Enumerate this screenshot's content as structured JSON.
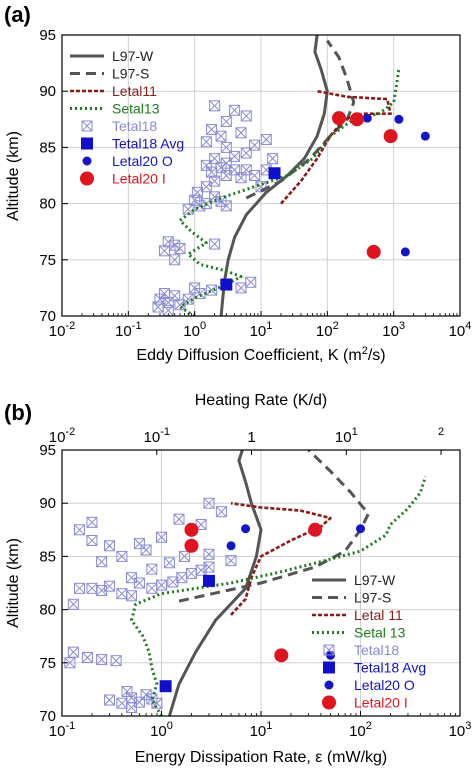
{
  "colors": {
    "l97w": "#555555",
    "l97s": "#555555",
    "letal11": "#8b1a1a",
    "setal13": "#1e7a1e",
    "tetal18": "#8a8ad8",
    "tetal18avg": "#1010cc",
    "letal20o": "#1515c8",
    "letal20i": "#e0141e"
  },
  "chart_data": [
    {
      "type": "scatter",
      "panel_label": "(a)",
      "xlabel": "Eddy Diffusion Coefficient, K (m",
      "xlabel_sup": "2",
      "xlabel_tail": "/s)",
      "ylabel": "Altitude (km)",
      "x_scale": "log",
      "xlim": [
        0.01,
        10000
      ],
      "ylim": [
        70,
        95
      ],
      "grid": true,
      "legend_position": "top-left",
      "x_tick_bases": [
        "10",
        "10",
        "10",
        "10",
        "10",
        "10",
        "10"
      ],
      "x_tick_exps": [
        "-2",
        "-1",
        "0",
        "1",
        "2",
        "3",
        "4"
      ],
      "y_ticks": [
        "70",
        "75",
        "80",
        "85",
        "90",
        "95"
      ],
      "legend": [
        "L97-W",
        "L97-S",
        "Letal11",
        "Setal13",
        "Tetal18",
        "Tetal18 Avg",
        "Letal20 O",
        "Letal20 I"
      ],
      "series": [
        {
          "name": "L97-W",
          "style": "line",
          "points": [
            [
              2.5,
              70
            ],
            [
              2.8,
              73
            ],
            [
              3.2,
              75
            ],
            [
              4,
              77
            ],
            [
              6,
              79
            ],
            [
              12,
              81
            ],
            [
              25,
              82.5
            ],
            [
              45,
              84
            ],
            [
              70,
              86
            ],
            [
              90,
              88
            ],
            [
              100,
              90
            ],
            [
              80,
              92
            ],
            [
              65,
              93.5
            ],
            [
              70,
              95
            ]
          ]
        },
        {
          "name": "L97-S",
          "style": "dash",
          "points": [
            [
              6,
              80.5
            ],
            [
              20,
              82
            ],
            [
              55,
              84
            ],
            [
              110,
              86
            ],
            [
              200,
              87.5
            ],
            [
              250,
              89
            ],
            [
              200,
              91
            ],
            [
              150,
              93
            ],
            [
              100,
              94.5
            ]
          ]
        },
        {
          "name": "Letal11",
          "style": "dot-dash",
          "points": [
            [
              20,
              80
            ],
            [
              40,
              82
            ],
            [
              70,
              84
            ],
            [
              110,
              86
            ],
            [
              180,
              87.5
            ],
            [
              350,
              88
            ],
            [
              900,
              88
            ],
            [
              800,
              89.3
            ],
            [
              200,
              89.5
            ],
            [
              70,
              90
            ]
          ]
        },
        {
          "name": "Setal13",
          "style": "dot",
          "points": [
            [
              1,
              70
            ],
            [
              0.6,
              70.8
            ],
            [
              1,
              71.6
            ],
            [
              3,
              72.8
            ],
            [
              5,
              73.5
            ],
            [
              3,
              74
            ],
            [
              1.2,
              74.6
            ],
            [
              0.8,
              75.5
            ],
            [
              1.5,
              76.5
            ],
            [
              0.9,
              77.5
            ],
            [
              0.6,
              78.5
            ],
            [
              1,
              79.5
            ],
            [
              2.5,
              80.5
            ],
            [
              8,
              81.5
            ],
            [
              25,
              82.5
            ],
            [
              60,
              84
            ],
            [
              110,
              86
            ],
            [
              250,
              87.5
            ],
            [
              600,
              88
            ],
            [
              1000,
              89
            ],
            [
              1100,
              90.5
            ],
            [
              1200,
              92
            ]
          ]
        },
        {
          "name": "Tetal18",
          "style": "xbox",
          "points": [
            [
              0.3,
              71.5
            ],
            [
              0.4,
              71.2
            ],
            [
              0.35,
              72
            ],
            [
              0.5,
              71.8
            ],
            [
              0.28,
              70.8
            ],
            [
              0.4,
              70.5
            ],
            [
              0.6,
              71
            ],
            [
              0.8,
              71.5
            ],
            [
              1,
              72.5
            ],
            [
              1.2,
              72
            ],
            [
              1.8,
              72.3
            ],
            [
              5,
              72.5
            ],
            [
              7,
              73
            ],
            [
              0.5,
              75
            ],
            [
              0.35,
              75.8
            ],
            [
              0.5,
              76.3
            ],
            [
              0.4,
              76.6
            ],
            [
              0.6,
              76
            ],
            [
              2,
              76.4
            ],
            [
              0.8,
              79.5
            ],
            [
              1.2,
              79.8
            ],
            [
              1,
              80.3
            ],
            [
              1.5,
              80
            ],
            [
              2,
              80.6
            ],
            [
              3,
              79.8
            ],
            [
              2.5,
              80.2
            ],
            [
              1.1,
              81
            ],
            [
              1.5,
              81.5
            ],
            [
              2,
              82
            ],
            [
              3,
              82.5
            ],
            [
              4,
              83
            ],
            [
              5,
              82.3
            ],
            [
              1.8,
              82.8
            ],
            [
              2.5,
              83.2
            ],
            [
              3,
              83.6
            ],
            [
              1.5,
              83.4
            ],
            [
              6,
              83
            ],
            [
              8,
              82.5
            ],
            [
              10,
              81.5
            ],
            [
              12,
              83
            ],
            [
              15,
              84
            ],
            [
              2,
              84
            ],
            [
              4,
              84.2
            ],
            [
              6,
              84.5
            ],
            [
              3,
              85
            ],
            [
              8,
              85.2
            ],
            [
              1.5,
              85.5
            ],
            [
              2.5,
              86
            ],
            [
              5,
              86.3
            ],
            [
              1.8,
              86.6
            ],
            [
              12,
              85.7
            ],
            [
              3,
              87.3
            ],
            [
              6,
              87.8
            ],
            [
              4,
              88.3
            ],
            [
              2,
              88.7
            ]
          ]
        },
        {
          "name": "Tetal18 Avg",
          "style": "square",
          "points": [
            [
              3,
              72.8
            ],
            [
              16,
              82.7
            ]
          ]
        },
        {
          "name": "Letal20 O",
          "style": "small-dot",
          "points": [
            [
              1200,
              87.5
            ],
            [
              400,
              87.6
            ],
            [
              3000,
              86
            ],
            [
              1500,
              75.7
            ]
          ]
        },
        {
          "name": "Letal20 I",
          "style": "big-dot",
          "points": [
            [
              150,
              87.6
            ],
            [
              280,
              87.5
            ],
            [
              900,
              86
            ],
            [
              500,
              75.7
            ]
          ]
        }
      ]
    },
    {
      "type": "scatter",
      "panel_label": "(b)",
      "xlabel": "Energy Dissipation Rate,  ε (mW/kg)",
      "x2label": "Heating Rate (K/d)",
      "ylabel": "Altitude (km)",
      "x_scale": "log",
      "xlim": [
        0.1,
        1000
      ],
      "x2lim": [
        0.01,
        1000
      ],
      "ylim": [
        70,
        95
      ],
      "grid": true,
      "legend_position": "bottom-right",
      "x_tick_bases": [
        "10",
        "10",
        "10",
        "10",
        "10"
      ],
      "x_tick_exps": [
        "-1",
        "0",
        "1",
        "2",
        "3"
      ],
      "x2_tick_bases": [
        "10",
        "10",
        "10",
        "10"
      ],
      "x2_tick_exps": [
        "-2",
        "-1",
        "0",
        "1",
        "2"
      ],
      "x2_tick_labels_special": [
        "",
        "",
        "1",
        "",
        ""
      ],
      "y_ticks": [
        "70",
        "75",
        "80",
        "85",
        "90",
        "95"
      ],
      "legend": [
        "L97-W",
        "L97-S",
        "Letal 11",
        "Setal 13",
        "Tetal18",
        "Tetal18 Avg",
        "Letal20 O",
        "Letal20 I"
      ],
      "series": [
        {
          "name": "L97-W",
          "style": "line",
          "points": [
            [
              1.2,
              70
            ],
            [
              1.5,
              73
            ],
            [
              2.2,
              76
            ],
            [
              3.5,
              79
            ],
            [
              7,
              82
            ],
            [
              9,
              85
            ],
            [
              10,
              87.5
            ],
            [
              8,
              90
            ],
            [
              7,
              92
            ],
            [
              6,
              94
            ],
            [
              6.5,
              95
            ]
          ]
        },
        {
          "name": "L97-S",
          "style": "dash",
          "points": [
            [
              1.5,
              80.8
            ],
            [
              10,
              82.5
            ],
            [
              35,
              84
            ],
            [
              70,
              85.5
            ],
            [
              100,
              87.5
            ],
            [
              120,
              89
            ],
            [
              80,
              91
            ],
            [
              50,
              93
            ],
            [
              30,
              95
            ]
          ]
        },
        {
          "name": "Letal11",
          "style": "dot-dash",
          "points": [
            [
              5,
              79.5
            ],
            [
              7,
              81
            ],
            [
              8,
              83
            ],
            [
              10,
              85
            ],
            [
              20,
              86.5
            ],
            [
              40,
              87.8
            ],
            [
              50,
              88.6
            ],
            [
              25,
              89.3
            ],
            [
              10,
              89.6
            ],
            [
              5,
              90
            ]
          ]
        },
        {
          "name": "Setal13",
          "style": "dot",
          "points": [
            [
              1,
              70
            ],
            [
              0.8,
              71.5
            ],
            [
              0.9,
              73
            ],
            [
              0.8,
              74.5
            ],
            [
              0.75,
              76
            ],
            [
              0.65,
              77.5
            ],
            [
              0.5,
              79
            ],
            [
              0.55,
              80.5
            ],
            [
              1,
              81.5
            ],
            [
              5,
              82.5
            ],
            [
              15,
              83.5
            ],
            [
              40,
              84.5
            ],
            [
              100,
              85.5
            ],
            [
              180,
              87
            ],
            [
              200,
              88
            ],
            [
              300,
              89.5
            ],
            [
              400,
              91
            ],
            [
              450,
              92.5
            ]
          ]
        },
        {
          "name": "Tetal18",
          "style": "xbox",
          "points": [
            [
              0.3,
              71.5
            ],
            [
              0.4,
              71.2
            ],
            [
              0.5,
              71.7
            ],
            [
              0.6,
              71.3
            ],
            [
              0.7,
              72
            ],
            [
              0.8,
              71.6
            ],
            [
              0.45,
              72.3
            ],
            [
              0.5,
              70.8
            ],
            [
              0.9,
              71.2
            ],
            [
              0.12,
              75
            ],
            [
              0.18,
              75.5
            ],
            [
              0.25,
              75.3
            ],
            [
              0.35,
              75.2
            ],
            [
              0.13,
              76
            ],
            [
              0.13,
              80.5
            ],
            [
              0.15,
              82
            ],
            [
              0.2,
              82
            ],
            [
              0.25,
              81.8
            ],
            [
              0.3,
              82.2
            ],
            [
              0.4,
              81.5
            ],
            [
              0.5,
              81.3
            ],
            [
              0.6,
              82.5
            ],
            [
              0.8,
              82
            ],
            [
              1,
              82.3
            ],
            [
              1.3,
              82.6
            ],
            [
              1.6,
              83
            ],
            [
              2,
              83.4
            ],
            [
              2.5,
              83.7
            ],
            [
              3,
              84
            ],
            [
              0.5,
              83
            ],
            [
              0.8,
              83.8
            ],
            [
              1.2,
              84.4
            ],
            [
              1.7,
              85
            ],
            [
              3,
              85.2
            ],
            [
              5,
              84.6
            ],
            [
              0.25,
              84.5
            ],
            [
              0.4,
              85
            ],
            [
              0.3,
              86
            ],
            [
              0.2,
              86.5
            ],
            [
              0.6,
              86.2
            ],
            [
              1,
              86.8
            ],
            [
              2.5,
              88
            ],
            [
              1.5,
              88.5
            ],
            [
              4,
              89.2
            ],
            [
              3,
              90
            ],
            [
              0.2,
              88.2
            ],
            [
              0.15,
              87.5
            ],
            [
              0.7,
              85.6
            ]
          ]
        },
        {
          "name": "Tetal18 Avg",
          "style": "square",
          "points": [
            [
              1.1,
              72.8
            ],
            [
              3,
              82.7
            ]
          ]
        },
        {
          "name": "Letal20 O",
          "style": "small-dot",
          "points": [
            [
              7,
              87.6
            ],
            [
              100,
              87.6
            ],
            [
              5,
              86
            ],
            [
              50,
              75.7
            ]
          ]
        },
        {
          "name": "Letal20 I",
          "style": "big-dot",
          "points": [
            [
              2,
              87.5
            ],
            [
              35,
              87.5
            ],
            [
              2,
              86
            ],
            [
              16,
              75.7
            ]
          ]
        }
      ]
    }
  ]
}
